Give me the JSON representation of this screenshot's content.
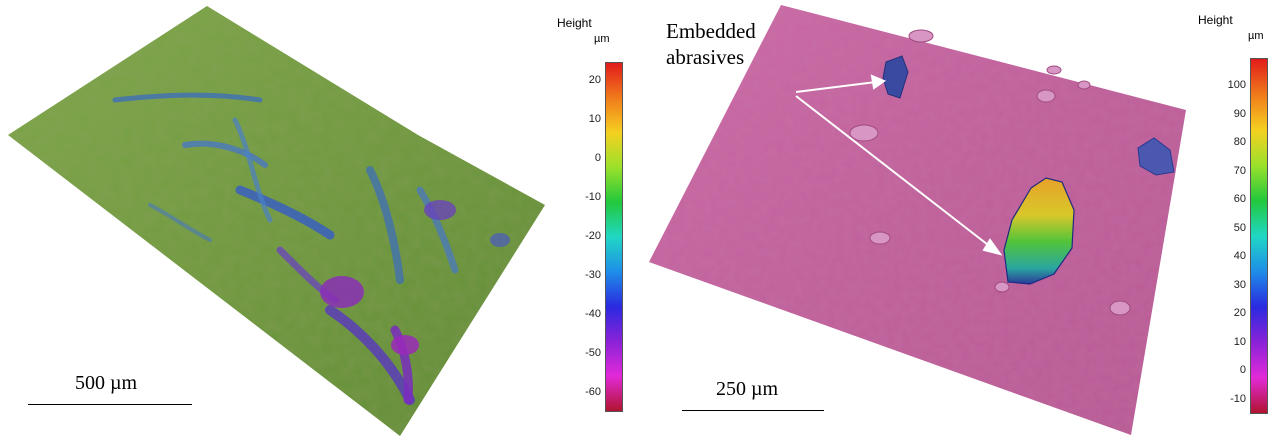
{
  "left_panel": {
    "scale_bar": "500 µm",
    "colorbar": {
      "title": "Height",
      "unit": "µm",
      "ticks": [
        "20",
        "10",
        "0",
        "-10",
        "-20",
        "-30",
        "-40",
        "-50",
        "-60"
      ],
      "range": [
        -65,
        25
      ]
    }
  },
  "right_panel": {
    "annotation": "Embedded abrasives",
    "scale_bar": "250 µm",
    "colorbar": {
      "title": "Height",
      "unit": "µm",
      "ticks": [
        "100",
        "90",
        "80",
        "70",
        "60",
        "50",
        "40",
        "30",
        "20",
        "10",
        "0",
        "-10"
      ],
      "range": [
        -15,
        110
      ]
    }
  },
  "colors": {
    "left_surface": "#6f9a3e",
    "right_surface": "#c0609a",
    "colormap": [
      "#e21b1b",
      "#f07a1b",
      "#f5d020",
      "#9be12a",
      "#22c83c",
      "#20d8c4",
      "#1e8de8",
      "#2a2ae0",
      "#8a22d8",
      "#e22ad8",
      "#b01430"
    ]
  }
}
